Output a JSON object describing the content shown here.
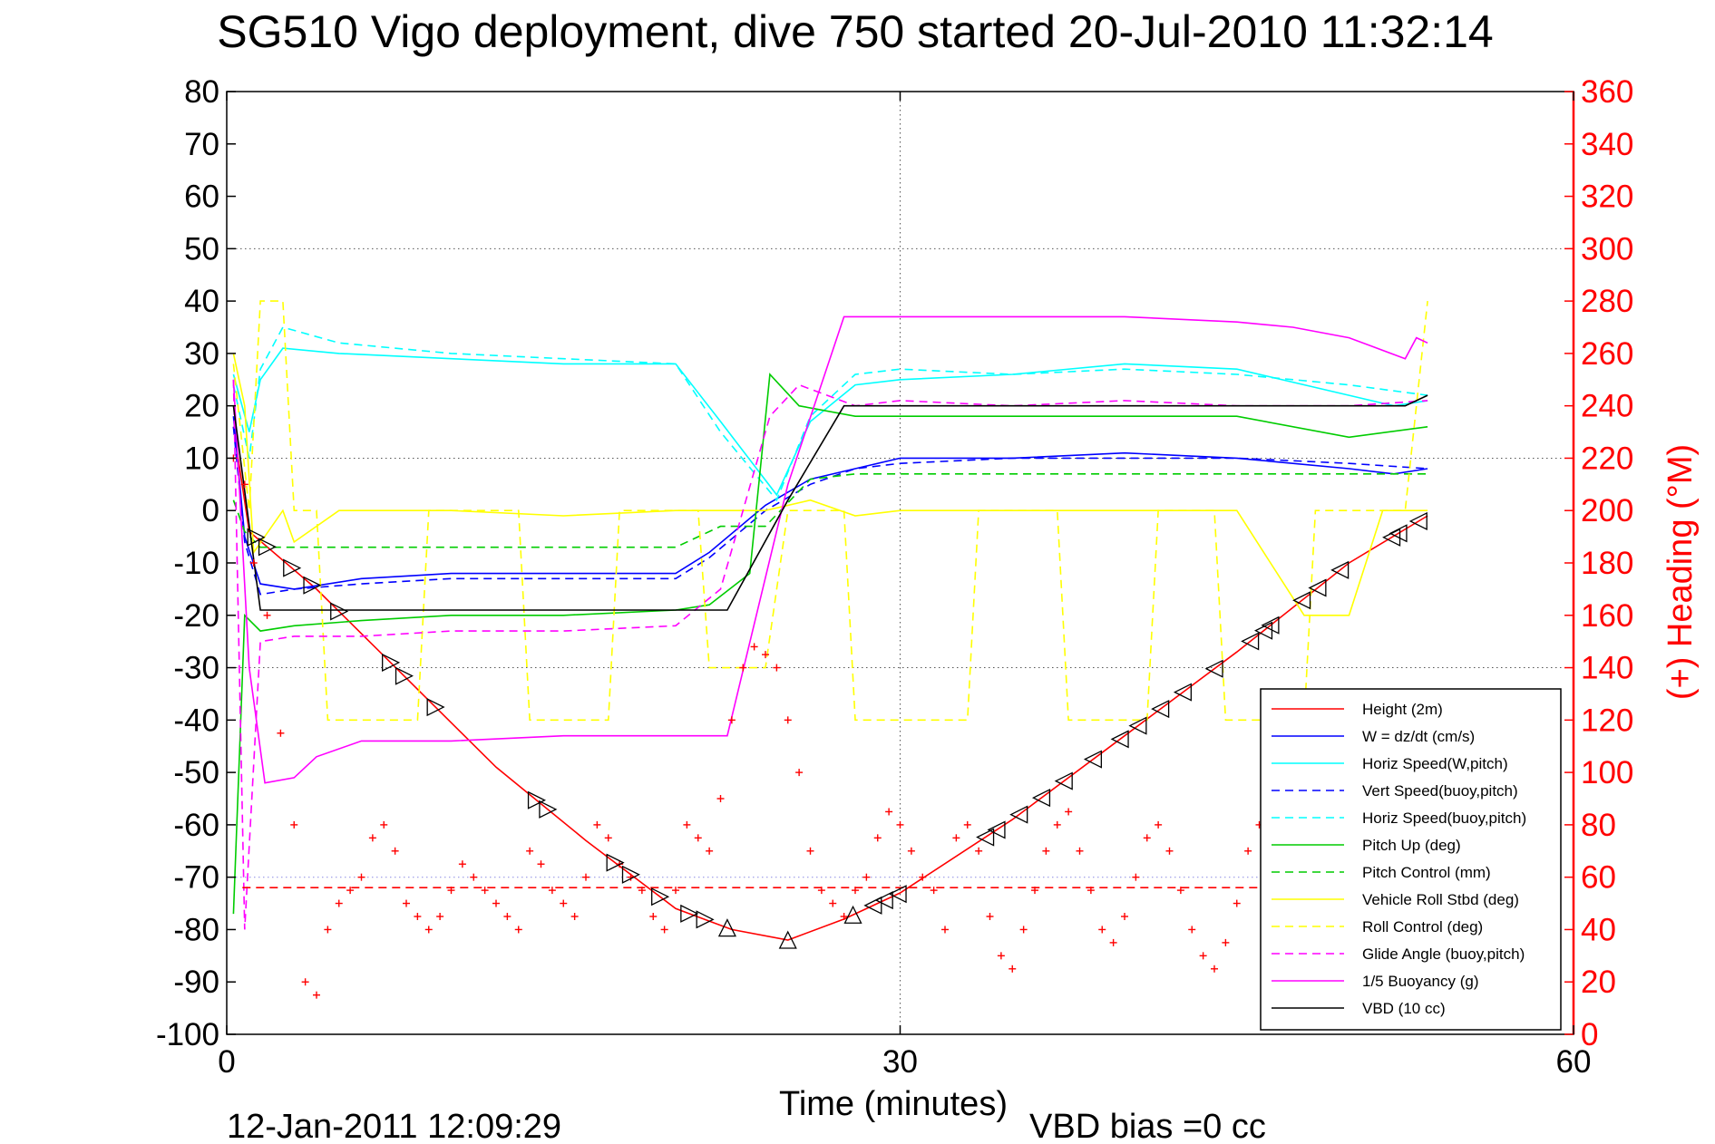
{
  "chart_data": {
    "type": "line",
    "title": "SG510 Vigo deployment, dive 750 started 20-Jul-2010 11:32:14",
    "xlabel": "Time (minutes)",
    "ylabel_right": "(+) Heading (°M)",
    "xlim": [
      0,
      60
    ],
    "ylim": [
      -100,
      80
    ],
    "ylim_right": [
      0,
      360
    ],
    "x_ticks": [
      "0",
      "30",
      "60"
    ],
    "y_ticks": [
      "80",
      "70",
      "60",
      "50",
      "40",
      "30",
      "20",
      "10",
      "0",
      "-10",
      "-20",
      "-30",
      "-40",
      "-50",
      "-60",
      "-70",
      "-80",
      "-90",
      "-100"
    ],
    "y_right_ticks": [
      "360",
      "340",
      "320",
      "300",
      "280",
      "260",
      "240",
      "220",
      "200",
      "180",
      "160",
      "140",
      "120",
      "100",
      "80",
      "60",
      "40",
      "20",
      "0"
    ],
    "grid": "dotted, at 30 minutes and at y = -70, -30, 10, 50",
    "legend_position": "bottom-right",
    "footer_date": "12-Jan-2011 12:09:29",
    "footer_bias": "VBD bias =0 cc",
    "colors": {
      "red": "#ff0000",
      "blue": "#0000ff",
      "cyan": "#00ffff",
      "green": "#00cc00",
      "yellow": "#ffff00",
      "magenta": "#ff00ff",
      "black": "#000000"
    },
    "series": [
      {
        "name": "Height (2m)",
        "color": "#ff0000",
        "style": "solid",
        "x": [
          0.3,
          1.0,
          4.0,
          8.0,
          12.0,
          16.0,
          20.0,
          22.5,
          25.0,
          27.5,
          30.0,
          35.0,
          40.0,
          45.0,
          50.0,
          53.5
        ],
        "y": [
          16,
          -4,
          -15,
          -32,
          -49,
          -63,
          -76,
          -80,
          -82,
          -78,
          -73,
          -59,
          -43,
          -27,
          -10,
          -1
        ]
      },
      {
        "name": "W = dz/dt (cm/s)",
        "color": "#0000ff",
        "style": "solid",
        "x": [
          0.3,
          0.8,
          1.5,
          3,
          6,
          10,
          15,
          20,
          21.5,
          24,
          26,
          28,
          30,
          35,
          40,
          45,
          50,
          52,
          53.5
        ],
        "y": [
          18,
          -5,
          -14,
          -15,
          -13,
          -12,
          -12,
          -12,
          -8,
          1,
          6,
          8,
          10,
          10,
          11,
          10,
          8,
          7,
          8
        ]
      },
      {
        "name": "Horiz Speed(W,pitch)",
        "color": "#00ffff",
        "style": "solid",
        "x": [
          0.3,
          1.0,
          1.5,
          2.5,
          5,
          10,
          15,
          20,
          22,
          24.5,
          26,
          28,
          30,
          35,
          40,
          45,
          50,
          52,
          53.5
        ],
        "y": [
          26,
          15,
          25,
          31,
          30,
          29,
          28,
          28,
          17,
          3,
          17,
          24,
          25,
          26,
          28,
          27,
          22,
          20,
          21
        ]
      },
      {
        "name": "Vert Speed(buoy,pitch)",
        "color": "#0000ff",
        "style": "dashed",
        "x": [
          0.3,
          0.8,
          1.5,
          3,
          6,
          10,
          15,
          20,
          21.5,
          24,
          26,
          28,
          30,
          35,
          40,
          45,
          50,
          53.5
        ],
        "y": [
          16,
          -6,
          -16,
          -15,
          -14,
          -13,
          -13,
          -13,
          -9,
          0,
          5,
          8,
          9,
          10,
          10,
          10,
          9,
          8
        ]
      },
      {
        "name": "Horiz Speed(buoy,pitch)",
        "color": "#00ffff",
        "style": "dashed",
        "x": [
          0.3,
          1.0,
          1.5,
          2.5,
          5,
          10,
          15,
          20,
          22,
          24.5,
          26,
          28,
          30,
          35,
          40,
          45,
          50,
          53.5
        ],
        "y": [
          24,
          10,
          27,
          35,
          32,
          30,
          29,
          28,
          15,
          2,
          18,
          26,
          27,
          26,
          27,
          26,
          24,
          22
        ]
      },
      {
        "name": "Pitch Up (deg)",
        "color": "#00cc00",
        "style": "solid",
        "x": [
          0.3,
          0.8,
          1.5,
          3,
          6,
          10,
          15,
          20,
          21.5,
          23.3,
          24.2,
          25.5,
          28,
          30,
          35,
          40,
          45,
          50,
          53.5
        ],
        "y": [
          -77,
          -20,
          -23,
          -22,
          -21,
          -20,
          -20,
          -19,
          -18,
          -12,
          26,
          20,
          18,
          18,
          18,
          18,
          18,
          14,
          16
        ]
      },
      {
        "name": "Pitch Control (mm)",
        "color": "#00cc00",
        "style": "dashed",
        "x": [
          0.3,
          0.8,
          1.5,
          4,
          10,
          15,
          20,
          22,
          24,
          26,
          28,
          30,
          40,
          50,
          53.5
        ],
        "y": [
          2,
          -4,
          -7,
          -7,
          -7,
          -7,
          -7,
          -3,
          -3,
          6,
          7,
          7,
          7,
          7,
          7
        ]
      },
      {
        "name": "Vehicle Roll Stbd (deg)",
        "color": "#ffff00",
        "style": "solid",
        "x": [
          0.3,
          0.8,
          1.2,
          2.5,
          3.0,
          5,
          10,
          15,
          20,
          22,
          24,
          26,
          28,
          30,
          35,
          40,
          45,
          48,
          50,
          51.5,
          53.5
        ],
        "y": [
          30,
          20,
          -8,
          0,
          -6,
          0,
          0,
          -1,
          0,
          0,
          0,
          2,
          -1,
          0,
          0,
          0,
          0,
          -20,
          -20,
          0,
          0
        ]
      },
      {
        "name": "Roll Control (deg)",
        "color": "#ffff00",
        "style": "dashed",
        "x": [
          0.3,
          1.0,
          1.5,
          2.5,
          3.0,
          4.0,
          4.5,
          8.5,
          9,
          13,
          13.5,
          17,
          17.5,
          21,
          21.5,
          24,
          25,
          27.5,
          28,
          33,
          33.5,
          37,
          37.5,
          41,
          41.5,
          44,
          44.5,
          48,
          48.5,
          52.5,
          53.5
        ],
        "y": [
          28,
          0,
          40,
          40,
          0,
          0,
          -40,
          -40,
          0,
          0,
          -40,
          -40,
          0,
          0,
          -30,
          -30,
          0,
          0,
          -40,
          -40,
          0,
          0,
          -40,
          -40,
          0,
          0,
          -40,
          -40,
          0,
          0,
          40
        ]
      },
      {
        "name": "Glide Angle (buoy,pitch)",
        "color": "#ff00ff",
        "style": "dashed",
        "x": [
          0.3,
          0.8,
          1.5,
          3,
          6,
          10,
          15,
          20,
          22,
          24.2,
          25.5,
          28,
          30,
          35,
          40,
          45,
          50,
          53.5
        ],
        "y": [
          25,
          -80,
          -25,
          -24,
          -24,
          -23,
          -23,
          -22,
          -15,
          18,
          24,
          20,
          21,
          20,
          21,
          20,
          20,
          21
        ]
      },
      {
        "name": "1/5 Buoyancy (g)",
        "color": "#ff00ff",
        "style": "solid",
        "x": [
          0.3,
          1.0,
          1.7,
          3,
          4,
          6,
          10,
          15,
          20,
          22.3,
          25,
          27.5,
          30,
          35,
          40,
          45,
          47.5,
          50,
          52.5,
          53.0,
          53.5
        ],
        "y": [
          25,
          -30,
          -52,
          -51,
          -47,
          -44,
          -44,
          -43,
          -43,
          -43,
          5,
          37,
          37,
          37,
          37,
          36,
          35,
          33,
          29,
          33,
          32
        ]
      },
      {
        "name": "VBD (10 cc)",
        "color": "#000000",
        "style": "solid",
        "x": [
          0.3,
          1.5,
          22.3,
          25,
          27.5,
          30,
          40,
          50,
          52.5,
          53.5
        ],
        "y": [
          20,
          -19,
          -19,
          2,
          20,
          20,
          20,
          20,
          20,
          22
        ]
      },
      {
        "name": "",
        "color": "#ff0000",
        "style": "dashed",
        "x": [
          0.7,
          53.5
        ],
        "y": [
          -72,
          -72
        ]
      }
    ],
    "heading_points": {
      "color": "#ff0000",
      "marker": "plus",
      "units": "degrees",
      "x": [
        0.3,
        0.8,
        1.2,
        1.8,
        2.4,
        3.0,
        3.5,
        4.0,
        4.5,
        5.0,
        5.5,
        6.0,
        6.5,
        7.0,
        7.5,
        8.0,
        8.5,
        9.0,
        9.5,
        10.0,
        10.5,
        11.0,
        11.5,
        12.0,
        12.5,
        13.0,
        13.5,
        14.0,
        14.5,
        15.0,
        15.5,
        16.0,
        16.5,
        17.0,
        17.5,
        18.0,
        18.5,
        19.0,
        19.5,
        20.0,
        20.5,
        21.0,
        21.5,
        22.0,
        22.5,
        23.0,
        23.5,
        24.0,
        24.5,
        25.0,
        25.5,
        26.0,
        26.5,
        27.0,
        27.5,
        28.0,
        28.5,
        29.0,
        29.5,
        30.0,
        30.5,
        31.0,
        31.5,
        32.0,
        32.5,
        33.0,
        33.5,
        34.0,
        34.5,
        35.0,
        35.5,
        36.0,
        36.5,
        37.0,
        37.5,
        38.0,
        38.5,
        39.0,
        39.5,
        40.0,
        40.5,
        41.0,
        41.5,
        42.0,
        42.5,
        43.0,
        43.5,
        44.0,
        44.5,
        45.0,
        45.5,
        46.0,
        46.5,
        47.0,
        47.5,
        48.0,
        48.5,
        49.0,
        49.5,
        50.0,
        50.5,
        51.0,
        51.5,
        52.0
      ],
      "y": [
        220,
        210,
        180,
        160,
        115,
        80,
        20,
        15,
        40,
        50,
        55,
        60,
        75,
        80,
        70,
        50,
        45,
        40,
        45,
        55,
        65,
        60,
        55,
        50,
        45,
        40,
        70,
        65,
        55,
        50,
        45,
        60,
        80,
        75,
        65,
        60,
        55,
        45,
        40,
        55,
        80,
        75,
        70,
        90,
        120,
        140,
        148,
        145,
        140,
        120,
        100,
        70,
        55,
        50,
        45,
        55,
        60,
        75,
        85,
        80,
        70,
        60,
        55,
        40,
        75,
        80,
        70,
        45,
        30,
        25,
        40,
        55,
        70,
        80,
        85,
        70,
        55,
        40,
        35,
        45,
        60,
        75,
        80,
        70,
        55,
        40,
        30,
        25,
        35,
        50,
        70,
        80,
        75,
        55,
        45,
        40,
        35,
        30,
        45,
        60,
        70,
        75,
        65,
        60
      ]
    },
    "black_triangle_markers": {
      "color": "#000000",
      "marker": "triangle",
      "note": "markers along the height curve",
      "x": [
        1.3,
        1.8,
        2.9,
        3.8,
        5.0,
        7.3,
        7.9,
        9.3,
        13.8,
        14.3,
        17.3,
        18.0,
        19.3,
        20.6,
        21.3,
        22.3,
        25.0,
        27.9,
        28.8,
        29.3,
        29.9,
        33.8,
        34.3,
        35.3,
        36.3,
        37.3,
        38.6,
        39.8,
        40.6,
        41.6,
        42.6,
        44.0,
        45.6,
        46.2,
        46.5,
        47.9,
        48.6,
        49.6,
        51.9,
        52.2,
        53.1
      ]
    }
  },
  "legend": {
    "items": [
      {
        "label": "Height (2m)",
        "color": "#ff0000",
        "style": "solid"
      },
      {
        "label": "W = dz/dt (cm/s)",
        "color": "#0000ff",
        "style": "solid"
      },
      {
        "label": "Horiz Speed(W,pitch)",
        "color": "#00ffff",
        "style": "solid"
      },
      {
        "label": "Vert Speed(buoy,pitch)",
        "color": "#0000ff",
        "style": "dashed"
      },
      {
        "label": "Horiz Speed(buoy,pitch)",
        "color": "#00ffff",
        "style": "dashed"
      },
      {
        "label": "Pitch Up (deg)",
        "color": "#00cc00",
        "style": "solid"
      },
      {
        "label": "Pitch Control (mm)",
        "color": "#00cc00",
        "style": "dashed"
      },
      {
        "label": "Vehicle Roll Stbd (deg)",
        "color": "#ffff00",
        "style": "solid"
      },
      {
        "label": "Roll Control (deg)",
        "color": "#ffff00",
        "style": "dashed"
      },
      {
        "label": "Glide Angle (buoy,pitch)",
        "color": "#ff00ff",
        "style": "dashed"
      },
      {
        "label": "1/5 Buoyancy (g)",
        "color": "#ff00ff",
        "style": "solid"
      },
      {
        "label": "VBD (10 cc)",
        "color": "#000000",
        "style": "solid"
      }
    ]
  }
}
